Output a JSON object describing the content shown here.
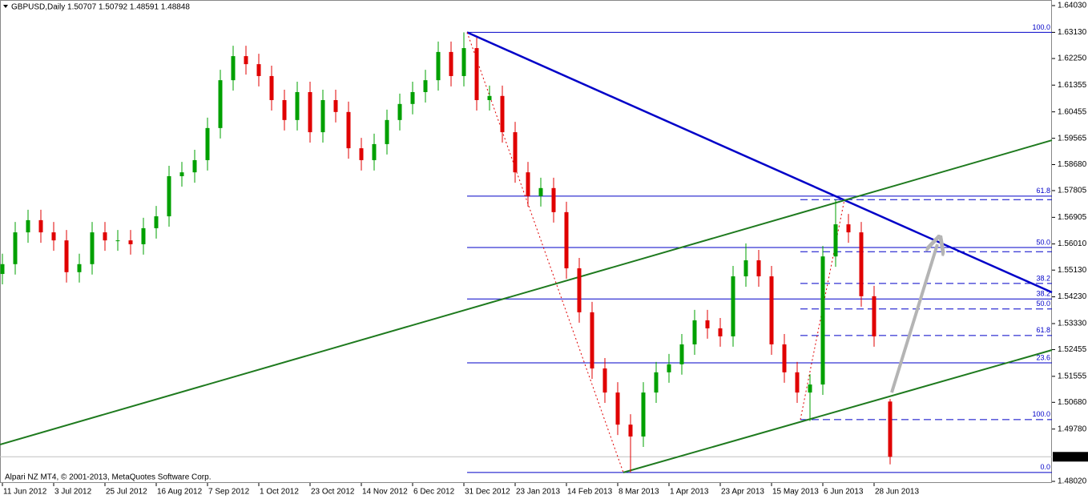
{
  "chart_data": {
    "type": "candlestick",
    "title": "GBPUSD,Daily  1.50707 1.50792 1.48591 1.48848",
    "footer": "Alpari NZ MT4, © 2001-2013, MetaQuotes Software Corp.",
    "up_color": "#00a000",
    "down_color": "#e00000",
    "x": [
      0,
      4,
      8,
      12,
      16,
      20,
      24,
      28,
      32,
      36,
      40,
      44,
      48,
      52,
      56,
      60,
      64,
      68,
      72,
      76,
      80,
      84,
      88,
      92,
      96,
      100,
      104,
      108,
      112,
      116,
      120,
      124,
      128,
      132,
      136,
      140,
      144,
      148,
      152,
      156,
      160,
      164,
      168,
      172,
      176,
      180,
      184,
      188,
      192,
      196,
      200,
      204,
      208,
      212,
      216,
      220,
      224,
      228,
      232,
      236,
      240,
      244,
      248,
      252,
      256,
      260,
      264,
      268,
      272,
      277
    ],
    "open": [
      1.55,
      1.5533,
      1.564,
      1.5681,
      1.564,
      1.5613,
      1.5506,
      1.5533,
      1.564,
      1.5613,
      1.5613,
      1.56,
      1.5654,
      1.5694,
      1.5829,
      1.5842,
      1.5883,
      1.5991,
      1.6152,
      1.6233,
      1.6206,
      1.6166,
      1.6085,
      1.6018,
      1.6112,
      1.5977,
      1.6085,
      1.6045,
      1.5923,
      1.5883,
      1.5937,
      1.6018,
      1.6072,
      1.6112,
      1.6152,
      1.6247,
      1.6166,
      1.626,
      1.6085,
      1.6099,
      1.5977,
      1.5842,
      1.5762,
      1.5789,
      1.5708,
      1.5519,
      1.5371,
      1.5182,
      1.5101,
      1.4993,
      1.4953,
      1.5101,
      1.5169,
      1.5196,
      1.5263,
      1.5344,
      1.5317,
      1.529,
      1.5492,
      1.5546,
      1.5492,
      1.5263,
      1.5169,
      1.5101,
      1.5128,
      1.5559,
      1.5667,
      1.564,
      1.5425,
      1.50707
    ],
    "high": [
      1.5568,
      1.5675,
      1.5716,
      1.5716,
      1.5675,
      1.5648,
      1.5568,
      1.5675,
      1.5675,
      1.5648,
      1.5648,
      1.5689,
      1.5729,
      1.5864,
      1.5877,
      1.5918,
      1.6026,
      1.6187,
      1.6268,
      1.6268,
      1.6241,
      1.6201,
      1.612,
      1.6147,
      1.6147,
      1.612,
      1.612,
      1.608,
      1.5958,
      1.5972,
      1.6053,
      1.6107,
      1.6147,
      1.6187,
      1.6282,
      1.6282,
      1.6313,
      1.6295,
      1.6134,
      1.6134,
      1.6012,
      1.5877,
      1.5824,
      1.5824,
      1.5743,
      1.5554,
      1.5406,
      1.5217,
      1.5136,
      1.5028,
      1.5136,
      1.5204,
      1.5231,
      1.5298,
      1.5379,
      1.5379,
      1.5352,
      1.5527,
      1.5603,
      1.5581,
      1.5527,
      1.5298,
      1.5204,
      1.5163,
      1.5594,
      1.575,
      1.5702,
      1.5675,
      1.546,
      1.50792
    ],
    "low": [
      1.5465,
      1.5498,
      1.5605,
      1.5605,
      1.5578,
      1.5471,
      1.5471,
      1.5498,
      1.5578,
      1.5578,
      1.5565,
      1.5565,
      1.5619,
      1.5659,
      1.5794,
      1.5807,
      1.5848,
      1.5956,
      1.6117,
      1.6171,
      1.6131,
      1.605,
      1.5983,
      1.5983,
      1.5942,
      1.5942,
      1.601,
      1.5888,
      1.5848,
      1.5848,
      1.5902,
      1.5983,
      1.6037,
      1.6077,
      1.6117,
      1.6131,
      1.6131,
      1.605,
      1.605,
      1.5942,
      1.5807,
      1.5727,
      1.5727,
      1.5673,
      1.5484,
      1.5336,
      1.5147,
      1.5066,
      1.4958,
      1.4832,
      1.4918,
      1.5066,
      1.5134,
      1.5161,
      1.5228,
      1.5282,
      1.5255,
      1.5255,
      1.5457,
      1.5457,
      1.5228,
      1.5134,
      1.5066,
      1.5005,
      1.5093,
      1.5524,
      1.5605,
      1.539,
      1.5255,
      1.48591
    ],
    "close": [
      1.5533,
      1.564,
      1.5681,
      1.564,
      1.5613,
      1.5506,
      1.5533,
      1.564,
      1.5613,
      1.5613,
      1.56,
      1.5654,
      1.5694,
      1.5829,
      1.5842,
      1.5883,
      1.5991,
      1.6152,
      1.6233,
      1.6206,
      1.6166,
      1.6085,
      1.6018,
      1.6112,
      1.5977,
      1.6085,
      1.6045,
      1.5923,
      1.5883,
      1.5937,
      1.6018,
      1.6072,
      1.6112,
      1.6152,
      1.6247,
      1.6166,
      1.626,
      1.6085,
      1.6099,
      1.5977,
      1.5842,
      1.5762,
      1.5789,
      1.5708,
      1.5519,
      1.5371,
      1.5182,
      1.5101,
      1.4993,
      1.4953,
      1.5101,
      1.5169,
      1.5196,
      1.5263,
      1.5344,
      1.5317,
      1.529,
      1.5492,
      1.5546,
      1.5492,
      1.5263,
      1.5169,
      1.5101,
      1.5128,
      1.5559,
      1.5667,
      1.564,
      1.5425,
      1.529,
      1.48848
    ],
    "xlim": [
      -0.75,
      327.5
    ],
    "xticks": [
      {
        "value": 0,
        "label": "11 Jun 2012"
      },
      {
        "value": 16,
        "label": "3 Jul 2012"
      },
      {
        "value": 32,
        "label": "25 Jul 2012"
      },
      {
        "value": 48,
        "label": "16 Aug 2012"
      },
      {
        "value": 64,
        "label": "7 Sep 2012"
      },
      {
        "value": 80,
        "label": "1 Oct 2012"
      },
      {
        "value": 96,
        "label": "23 Oct 2012"
      },
      {
        "value": 112,
        "label": "14 Nov 2012"
      },
      {
        "value": 128,
        "label": "6 Dec 2012"
      },
      {
        "value": 144,
        "label": "31 Dec 2012"
      },
      {
        "value": 160,
        "label": "23 Jan 2013"
      },
      {
        "value": 176,
        "label": "14 Feb 2013"
      },
      {
        "value": 192,
        "label": "8 Mar 2013"
      },
      {
        "value": 208,
        "label": "1 Apr 2013"
      },
      {
        "value": 224,
        "label": "23 Apr 2013"
      },
      {
        "value": 240,
        "label": "15 May 2013"
      },
      {
        "value": 256,
        "label": "6 Jun 2013"
      },
      {
        "value": 272,
        "label": "28 Jun 2013"
      }
    ],
    "ylim": [
      1.47966,
      1.64219
    ],
    "yticks": [
      {
        "value": 1.6403,
        "label": "1.64030"
      },
      {
        "value": 1.6313,
        "label": "1.63130"
      },
      {
        "value": 1.6225,
        "label": "1.62250"
      },
      1.61355,
      1.60455,
      1.59565,
      {
        "value": 1.5868,
        "label": "1.58680"
      },
      1.57805,
      1.56905,
      {
        "value": 1.5601,
        "label": "1.56010"
      },
      {
        "value": 1.5513,
        "label": "1.55130"
      },
      {
        "value": 1.5423,
        "label": "1.54230"
      },
      {
        "value": 1.5333,
        "label": "1.53330"
      },
      1.52455,
      1.51555,
      {
        "value": 1.5068,
        "label": "1.50680"
      },
      {
        "value": 1.4978,
        "label": "1.49780"
      },
      {
        "value": 1.4802,
        "label": "1.48020"
      }
    ],
    "fib_levels": {
      "x": [
        145,
        327.5
      ],
      "color": "#0000c8",
      "dashed": false,
      "levels": [
        {
          "label": "100.0",
          "value": 1.6313
        },
        {
          "label": "61.8",
          "value": 1.5762
        },
        {
          "label": "50.0",
          "value": 1.5589
        },
        {
          "label": "38.2",
          "value": 1.5416
        },
        {
          "label": "23.6",
          "value": 1.5201
        },
        {
          "label": "0.0",
          "value": 1.4832
        }
      ]
    },
    "fib_levels_2": {
      "x": [
        249,
        327.5
      ],
      "color": "#0000c8",
      "dashed": true,
      "levels": [
        {
          "label": null,
          "value": 1.575
        },
        {
          "label": null,
          "value": 1.5575
        },
        {
          "label": "38.2",
          "value": 1.5468
        },
        {
          "label": "50.0",
          "value": 1.5382
        },
        {
          "label": "61.8",
          "value": 1.5293
        },
        {
          "label": "100.0",
          "value": 1.501
        }
      ]
    },
    "lines": [
      {
        "x": [
          145,
          327.5
        ],
        "y": [
          1.6313,
          1.5438
        ],
        "color": "#0000c8",
        "width": 2.5,
        "dotted": false,
        "arrow": false
      },
      {
        "x": [
          -0.75,
          327.5
        ],
        "y": [
          1.4926,
          1.595
        ],
        "color": "#1e7a1e",
        "width": 2,
        "dotted": false,
        "arrow": false
      },
      {
        "x": [
          193.75,
          327.5
        ],
        "y": [
          1.4832,
          1.5244
        ],
        "color": "#1e7a1e",
        "width": 2,
        "dotted": false,
        "arrow": false
      },
      {
        "x": [
          145,
          193.75
        ],
        "y": [
          1.6313,
          1.4832
        ],
        "color": "#e00000",
        "width": 1,
        "dotted": true,
        "arrow": false
      },
      {
        "x": [
          249,
          262.75
        ],
        "y": [
          1.501,
          1.575
        ],
        "color": "#e00000",
        "width": 1,
        "dotted": true,
        "arrow": false
      },
      {
        "x": [
          277.5,
          291.75
        ],
        "y": [
          1.5101,
          1.56
        ],
        "color": "#b4b4b4",
        "width": 4,
        "dotted": false,
        "arrow": true
      }
    ]
  }
}
